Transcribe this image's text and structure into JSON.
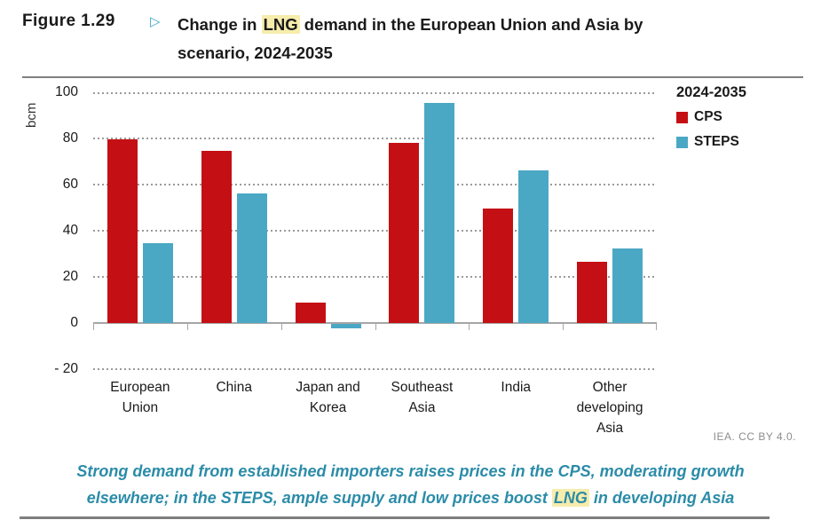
{
  "figure": {
    "label": "Figure 1.29",
    "arrow": "▷",
    "title_line1_pre": "Change in ",
    "title_highlight": "LNG",
    "title_line1_post": " demand in the European Union and Asia by",
    "title_line2": "scenario, 2024-2035"
  },
  "chart_data": {
    "type": "bar",
    "title": "Change in LNG demand in the European Union and Asia by scenario, 2024-2035",
    "ylabel": "bcm",
    "ylim": [
      -20,
      100
    ],
    "ytick_values": [
      100,
      80,
      60,
      40,
      20,
      0,
      -20
    ],
    "ytick_labels": [
      "100",
      "80",
      "60",
      "40",
      "20",
      "0",
      "- 20"
    ],
    "grid": "dotted horizontal gridlines, solid zero axis",
    "legend_title": "2024-2035",
    "legend_position": "top-right",
    "categories": [
      "European Union",
      "China",
      "Japan and Korea",
      "Southeast Asia",
      "India",
      "Other developing Asia"
    ],
    "category_lines": [
      [
        "European",
        "Union"
      ],
      [
        "China"
      ],
      [
        "Japan and",
        "Korea"
      ],
      [
        "Southeast",
        "Asia"
      ],
      [
        "India"
      ],
      [
        "Other",
        "developing Asia"
      ]
    ],
    "series": [
      {
        "name": "CPS",
        "color": "#C41014",
        "values": [
          79.5,
          74.5,
          9,
          78,
          49.5,
          26.5
        ]
      },
      {
        "name": "STEPS",
        "color": "#4BA8C4",
        "values": [
          34.5,
          56,
          -2,
          95.5,
          66,
          32.5
        ]
      }
    ]
  },
  "footer": {
    "credit": "IEA. CC BY 4.0.",
    "caption_line1": "Strong demand from established importers raises prices in the CPS, moderating growth",
    "caption_line2_pre": "elsewhere; in the STEPS, ample supply and low prices boost ",
    "caption_highlight": "LNG",
    "caption_line2_post": " in developing Asia"
  },
  "colors": {
    "cps_red": "#C41014",
    "steps_blue": "#4BA8C4",
    "caption_teal": "#2B8CA8",
    "highlight_yellow": "#F6ECAC",
    "arrow_teal": "#3BA6C9",
    "gridline_gray": "#9B9B9B",
    "axis_gray": "#A6A6A6",
    "credit_gray": "#8C8C8C"
  }
}
